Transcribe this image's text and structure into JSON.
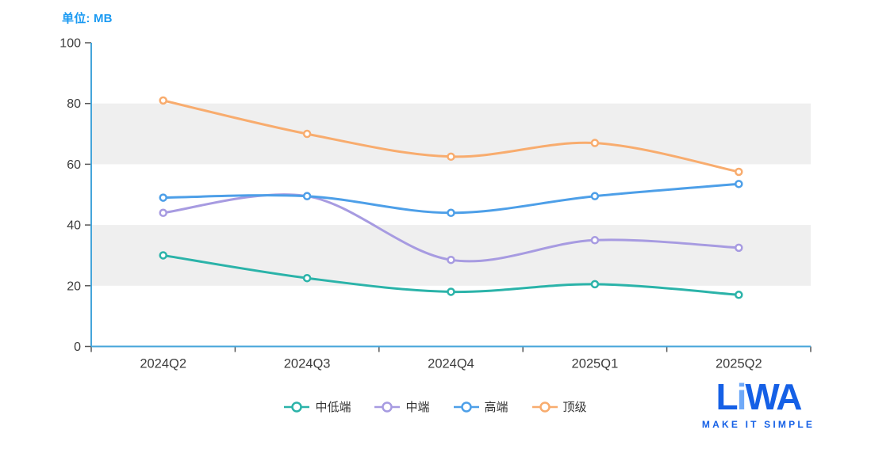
{
  "chart_data": {
    "type": "line",
    "smooth": true,
    "unit_label": "单位: MB",
    "unit": "MB",
    "categories": [
      "2024Q2",
      "2024Q3",
      "2024Q4",
      "2025Q1",
      "2025Q2"
    ],
    "series": [
      {
        "name": "中低端",
        "color": "#2bb3a9",
        "values": [
          30,
          22.5,
          18,
          20.5,
          17
        ]
      },
      {
        "name": "中端",
        "color": "#a79be1",
        "values": [
          44,
          49.5,
          28.5,
          35,
          32.5
        ]
      },
      {
        "name": "高端",
        "color": "#4d9fe8",
        "values": [
          49,
          49.5,
          44,
          49.5,
          53.5
        ]
      },
      {
        "name": "顶级",
        "color": "#f8ac6e",
        "values": [
          81,
          70,
          62.5,
          67,
          57.5
        ]
      }
    ],
    "ylim": [
      0,
      100
    ],
    "y_ticks": [
      0,
      20,
      40,
      60,
      80,
      100
    ],
    "shaded_bands": [
      [
        20,
        40
      ],
      [
        60,
        80
      ]
    ],
    "legend_position": "bottom-center",
    "colors": {
      "band": "#efefef",
      "axis_line": "#45a5da",
      "tick_mark": "#555555",
      "tick_label": "#3d3d3d",
      "unit_label": "#1b9af2"
    }
  },
  "logo": {
    "part1": "L",
    "part2": "i",
    "part3": "WA",
    "tagline": "MAKE IT SIMPLE",
    "color_main": "#1560e6",
    "color_accent": "#6fa9f8"
  }
}
